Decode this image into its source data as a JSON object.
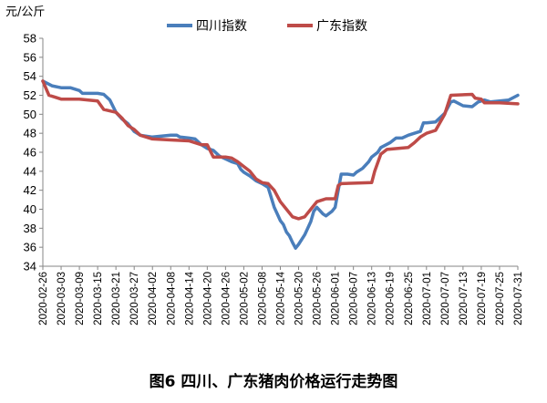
{
  "figure_caption": "图6 四川、广东猪肉价格运行走势图",
  "chart_data": {
    "type": "line",
    "y_unit": "元/公斤",
    "ylim": [
      34,
      58
    ],
    "yticks": [
      34,
      36,
      38,
      40,
      42,
      44,
      46,
      48,
      50,
      52,
      54,
      56,
      58
    ],
    "grid": false,
    "legend_position": "top",
    "x_tick_labels": [
      "2020-02-26",
      "2020-03-03",
      "2020-03-09",
      "2020-03-15",
      "2020-03-21",
      "2020-03-27",
      "2020-04-02",
      "2020-04-08",
      "2020-04-14",
      "2020-04-20",
      "2020-04-26",
      "2020-05-02",
      "2020-05-08",
      "2020-05-14",
      "2020-05-20",
      "2020-05-26",
      "2020-06-01",
      "2020-06-07",
      "2020-06-13",
      "2020-06-19",
      "2020-06-25",
      "2020-07-01",
      "2020-07-07",
      "2020-07-13",
      "2020-07-19",
      "2020-07-25",
      "2020-07-31"
    ],
    "series": [
      {
        "name": "四川指数",
        "color": "#4a7ebb",
        "points": [
          [
            "2020-02-26",
            53.5
          ],
          [
            "2020-02-29",
            53.0
          ],
          [
            "2020-03-03",
            52.8
          ],
          [
            "2020-03-06",
            52.8
          ],
          [
            "2020-03-09",
            52.5
          ],
          [
            "2020-03-10",
            52.2
          ],
          [
            "2020-03-15",
            52.2
          ],
          [
            "2020-03-17",
            52.1
          ],
          [
            "2020-03-19",
            51.5
          ],
          [
            "2020-03-21",
            50.2
          ],
          [
            "2020-03-23",
            49.5
          ],
          [
            "2020-03-25",
            49.0
          ],
          [
            "2020-03-27",
            48.2
          ],
          [
            "2020-03-29",
            47.8
          ],
          [
            "2020-04-02",
            47.6
          ],
          [
            "2020-04-05",
            47.7
          ],
          [
            "2020-04-08",
            47.8
          ],
          [
            "2020-04-10",
            47.8
          ],
          [
            "2020-04-11",
            47.6
          ],
          [
            "2020-04-14",
            47.5
          ],
          [
            "2020-04-16",
            47.4
          ],
          [
            "2020-04-18",
            46.8
          ],
          [
            "2020-04-20",
            46.4
          ],
          [
            "2020-04-22",
            46.2
          ],
          [
            "2020-04-24",
            45.6
          ],
          [
            "2020-04-26",
            45.3
          ],
          [
            "2020-04-28",
            45.0
          ],
          [
            "2020-04-30",
            44.8
          ],
          [
            "2020-05-01",
            44.2
          ],
          [
            "2020-05-02",
            43.9
          ],
          [
            "2020-05-04",
            43.5
          ],
          [
            "2020-05-06",
            43.0
          ],
          [
            "2020-05-08",
            42.7
          ],
          [
            "2020-05-10",
            42.3
          ],
          [
            "2020-05-12",
            40.2
          ],
          [
            "2020-05-13",
            39.5
          ],
          [
            "2020-05-14",
            38.8
          ],
          [
            "2020-05-15",
            38.4
          ],
          [
            "2020-05-16",
            37.6
          ],
          [
            "2020-05-17",
            37.2
          ],
          [
            "2020-05-18",
            36.5
          ],
          [
            "2020-05-19",
            35.9
          ],
          [
            "2020-05-20",
            36.3
          ],
          [
            "2020-05-22",
            37.3
          ],
          [
            "2020-05-23",
            38.0
          ],
          [
            "2020-05-24",
            38.7
          ],
          [
            "2020-05-25",
            39.8
          ],
          [
            "2020-05-26",
            40.2
          ],
          [
            "2020-05-28",
            39.5
          ],
          [
            "2020-05-29",
            39.3
          ],
          [
            "2020-05-31",
            39.8
          ],
          [
            "2020-06-01",
            40.2
          ],
          [
            "2020-06-02",
            42.0
          ],
          [
            "2020-06-03",
            43.7
          ],
          [
            "2020-06-05",
            43.7
          ],
          [
            "2020-06-07",
            43.6
          ],
          [
            "2020-06-08",
            43.9
          ],
          [
            "2020-06-10",
            44.3
          ],
          [
            "2020-06-12",
            45.0
          ],
          [
            "2020-06-13",
            45.5
          ],
          [
            "2020-06-15",
            46.0
          ],
          [
            "2020-06-16",
            46.5
          ],
          [
            "2020-06-19",
            47.0
          ],
          [
            "2020-06-21",
            47.5
          ],
          [
            "2020-06-23",
            47.5
          ],
          [
            "2020-06-25",
            47.8
          ],
          [
            "2020-06-27",
            48.0
          ],
          [
            "2020-06-29",
            48.2
          ],
          [
            "2020-06-30",
            49.1
          ],
          [
            "2020-07-01",
            49.1
          ],
          [
            "2020-07-04",
            49.2
          ],
          [
            "2020-07-07",
            50.1
          ],
          [
            "2020-07-09",
            51.3
          ],
          [
            "2020-07-10",
            51.4
          ],
          [
            "2020-07-13",
            50.9
          ],
          [
            "2020-07-16",
            50.8
          ],
          [
            "2020-07-18",
            51.3
          ],
          [
            "2020-07-20",
            51.5
          ],
          [
            "2020-07-22",
            51.3
          ],
          [
            "2020-07-25",
            51.4
          ],
          [
            "2020-07-28",
            51.5
          ],
          [
            "2020-07-31",
            52.0
          ]
        ]
      },
      {
        "name": "广东指数",
        "color": "#be4b48",
        "points": [
          [
            "2020-02-26",
            53.5
          ],
          [
            "2020-02-28",
            52.0
          ],
          [
            "2020-03-01",
            51.8
          ],
          [
            "2020-03-03",
            51.6
          ],
          [
            "2020-03-09",
            51.6
          ],
          [
            "2020-03-12",
            51.5
          ],
          [
            "2020-03-15",
            51.4
          ],
          [
            "2020-03-17",
            50.5
          ],
          [
            "2020-03-21",
            50.2
          ],
          [
            "2020-03-23",
            49.6
          ],
          [
            "2020-03-25",
            48.8
          ],
          [
            "2020-03-27",
            48.4
          ],
          [
            "2020-03-29",
            47.8
          ],
          [
            "2020-04-02",
            47.4
          ],
          [
            "2020-04-08",
            47.3
          ],
          [
            "2020-04-14",
            47.2
          ],
          [
            "2020-04-16",
            47.0
          ],
          [
            "2020-04-18",
            46.8
          ],
          [
            "2020-04-20",
            46.8
          ],
          [
            "2020-04-22",
            45.5
          ],
          [
            "2020-04-26",
            45.5
          ],
          [
            "2020-04-28",
            45.4
          ],
          [
            "2020-04-30",
            45.0
          ],
          [
            "2020-05-02",
            44.5
          ],
          [
            "2020-05-04",
            44.0
          ],
          [
            "2020-05-06",
            43.2
          ],
          [
            "2020-05-08",
            42.8
          ],
          [
            "2020-05-10",
            42.7
          ],
          [
            "2020-05-12",
            42.0
          ],
          [
            "2020-05-14",
            40.8
          ],
          [
            "2020-05-16",
            40.0
          ],
          [
            "2020-05-18",
            39.2
          ],
          [
            "2020-05-20",
            39.0
          ],
          [
            "2020-05-22",
            39.2
          ],
          [
            "2020-05-24",
            40.0
          ],
          [
            "2020-05-26",
            40.8
          ],
          [
            "2020-05-28",
            41.0
          ],
          [
            "2020-05-29",
            41.1
          ],
          [
            "2020-06-01",
            41.1
          ],
          [
            "2020-06-02",
            42.5
          ],
          [
            "2020-06-03",
            42.7
          ],
          [
            "2020-06-13",
            42.8
          ],
          [
            "2020-06-14",
            44.0
          ],
          [
            "2020-06-16",
            45.8
          ],
          [
            "2020-06-18",
            46.3
          ],
          [
            "2020-06-25",
            46.5
          ],
          [
            "2020-06-27",
            47.0
          ],
          [
            "2020-06-29",
            47.6
          ],
          [
            "2020-07-01",
            48.0
          ],
          [
            "2020-07-04",
            48.3
          ],
          [
            "2020-07-07",
            50.0
          ],
          [
            "2020-07-09",
            52.0
          ],
          [
            "2020-07-16",
            52.1
          ],
          [
            "2020-07-17",
            51.7
          ],
          [
            "2020-07-19",
            51.6
          ],
          [
            "2020-07-20",
            51.2
          ],
          [
            "2020-07-25",
            51.2
          ],
          [
            "2020-07-31",
            51.1
          ]
        ]
      }
    ]
  }
}
